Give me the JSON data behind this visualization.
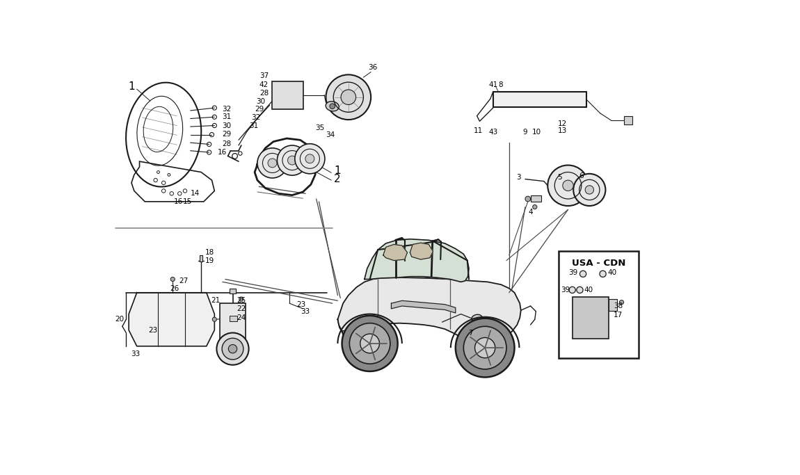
{
  "bg_color": "#ffffff",
  "line_color": "#1a1a1a",
  "text_color": "#000000",
  "fig_width": 11.5,
  "fig_height": 6.83,
  "dpi": 100,
  "fs_small": 7.5,
  "fs_label": 8.0,
  "fs_title": 9.0
}
